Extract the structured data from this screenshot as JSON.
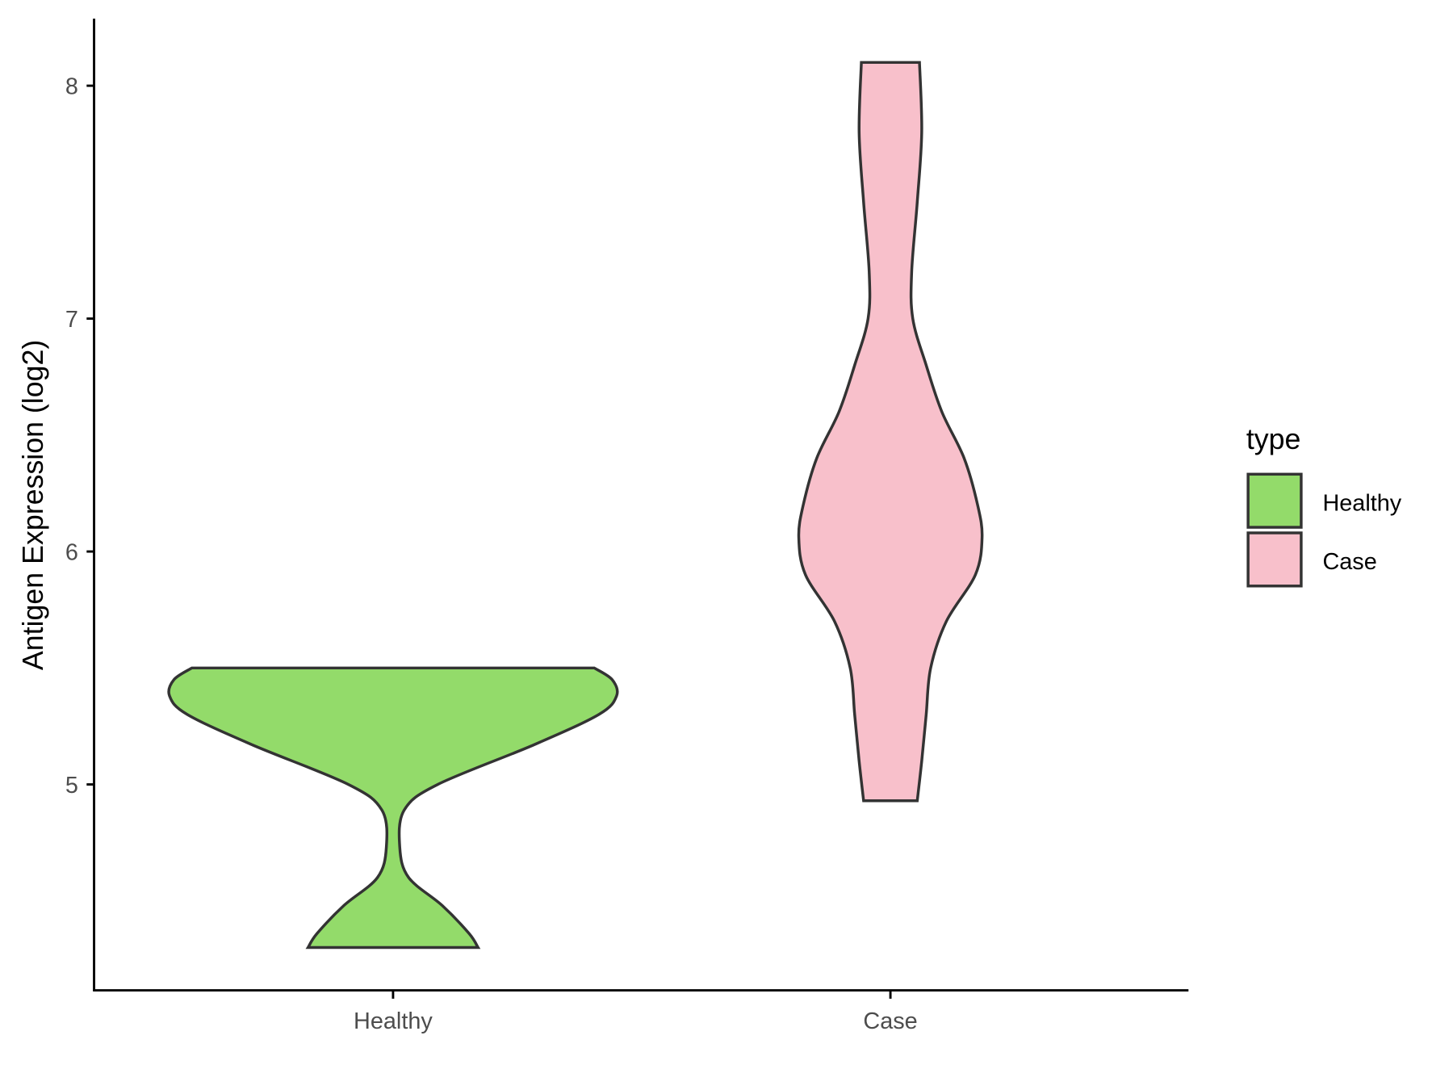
{
  "chart_data": {
    "type": "violin",
    "title": "",
    "xlabel": "",
    "ylabel": "Antigen Expression (log2)",
    "categories": [
      "Healthy",
      "Case"
    ],
    "yticks": [
      5,
      6,
      7,
      8
    ],
    "ylim": [
      4.15,
      8.3
    ],
    "grid": false,
    "legend": {
      "title": "type",
      "placement": "right",
      "entries": [
        "Healthy",
        "Case"
      ]
    },
    "colors": {
      "Healthy": "#93DB6A",
      "Case": "#F8C0CB",
      "outline": "#333333"
    },
    "series": [
      {
        "name": "Healthy",
        "min": 4.3,
        "max": 5.5,
        "density_profile": [
          [
            4.3,
            0.38
          ],
          [
            4.36,
            0.34
          ],
          [
            4.48,
            0.22
          ],
          [
            4.6,
            0.07
          ],
          [
            4.73,
            0.03
          ],
          [
            4.89,
            0.05
          ],
          [
            5.0,
            0.2
          ],
          [
            5.17,
            0.63
          ],
          [
            5.3,
            0.92
          ],
          [
            5.38,
            1.0
          ],
          [
            5.45,
            0.98
          ],
          [
            5.5,
            0.9
          ]
        ]
      },
      {
        "name": "Case",
        "min": 4.93,
        "max": 8.1,
        "density_profile": [
          [
            4.93,
            0.12
          ],
          [
            5.1,
            0.14
          ],
          [
            5.3,
            0.16
          ],
          [
            5.5,
            0.18
          ],
          [
            5.7,
            0.25
          ],
          [
            5.9,
            0.38
          ],
          [
            6.06,
            0.41
          ],
          [
            6.2,
            0.39
          ],
          [
            6.4,
            0.33
          ],
          [
            6.6,
            0.23
          ],
          [
            6.8,
            0.16
          ],
          [
            7.0,
            0.1
          ],
          [
            7.2,
            0.095
          ],
          [
            7.5,
            0.12
          ],
          [
            7.8,
            0.14
          ],
          [
            8.1,
            0.13
          ]
        ]
      }
    ]
  }
}
